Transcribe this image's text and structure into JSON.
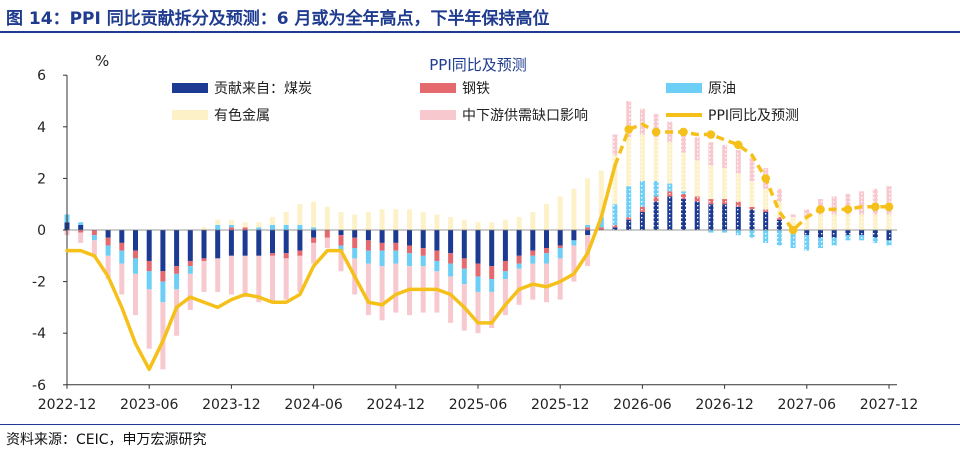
{
  "figure": {
    "title": "图 14：PPI 同比贡献拆分及预测：6 月或为全年高点，下半年保持高位",
    "source": "资料来源：CEIC，申万宏源研究"
  },
  "colors": {
    "coal": "#1c3a91",
    "steel": "#e46a70",
    "oil": "#6dcff6",
    "metal": "#fdf1c7",
    "shortage": "#f7c9ce",
    "ppi": "#f5c01a",
    "axis": "#333333",
    "title": "#1f3b8f"
  },
  "chart_data": {
    "type": "bar",
    "title": "PPI同比及预测",
    "ylabel": "%",
    "ylim": [
      -6,
      6
    ],
    "yticks": [
      6,
      4,
      2,
      0,
      -2,
      -4,
      -6
    ],
    "xtick_labels": [
      "2022-12",
      "2023-06",
      "2023-12",
      "2024-06",
      "2024-12",
      "2025-06",
      "2025-12",
      "2026-06",
      "2026-12",
      "2027-06",
      "2027-12"
    ],
    "xtick_index": [
      0,
      6,
      12,
      18,
      24,
      30,
      36,
      42,
      48,
      54,
      60
    ],
    "forecast_start_index": 40,
    "legend_position": "top",
    "series": [
      {
        "name": "贡献来自：煤炭",
        "key": "coal",
        "values": [
          0.3,
          0.2,
          0,
          -0.3,
          -0.5,
          -0.8,
          -1.2,
          -1.6,
          -1.4,
          -1.2,
          -1.1,
          -1.1,
          -1.0,
          -1.0,
          -1.0,
          -0.9,
          -0.9,
          -0.8,
          -0.3,
          0.0,
          -0.2,
          -0.3,
          -0.4,
          -0.5,
          -0.5,
          -0.6,
          -0.7,
          -0.8,
          -0.9,
          -1.1,
          -1.3,
          -1.4,
          -1.2,
          -1.0,
          -0.8,
          -0.7,
          -0.6,
          -0.4,
          -0.2,
          0.0,
          0.1,
          0.4,
          0.7,
          1.1,
          1.3,
          1.2,
          1.1,
          1.0,
          1.0,
          0.9,
          0.8,
          0.7,
          0.4,
          0.0,
          -0.2,
          -0.3,
          -0.3,
          -0.2,
          -0.2,
          -0.3,
          -0.4
        ]
      },
      {
        "name": "钢铁",
        "key": "steel",
        "values": [
          0.0,
          -0.1,
          -0.2,
          -0.3,
          -0.3,
          -0.3,
          -0.4,
          -0.4,
          -0.3,
          -0.2,
          -0.1,
          0.0,
          0.1,
          0.1,
          0.0,
          -0.1,
          -0.2,
          -0.2,
          -0.2,
          -0.3,
          -0.4,
          -0.4,
          -0.4,
          -0.3,
          -0.3,
          -0.3,
          -0.3,
          -0.4,
          -0.4,
          -0.4,
          -0.5,
          -0.5,
          -0.4,
          -0.3,
          -0.2,
          -0.2,
          -0.1,
          0.0,
          0.1,
          0.1,
          0.1,
          0.1,
          0.2,
          0.2,
          0.2,
          0.2,
          0.2,
          0.2,
          0.2,
          0.2,
          0.1,
          0.1,
          0.1,
          0.0,
          0.0,
          0.0,
          0.0,
          0.0,
          0.0,
          0.0,
          0.0
        ]
      },
      {
        "name": "原油",
        "key": "oil",
        "values": [
          0.3,
          0.1,
          -0.2,
          -0.4,
          -0.5,
          -0.6,
          -0.7,
          -0.8,
          -0.6,
          -0.3,
          0.0,
          0.2,
          0.1,
          0.0,
          0.1,
          0.2,
          0.2,
          0.2,
          0.1,
          0.0,
          -0.2,
          -0.4,
          -0.5,
          -0.6,
          -0.5,
          -0.5,
          -0.4,
          -0.4,
          -0.5,
          -0.6,
          -0.6,
          -0.5,
          -0.3,
          -0.2,
          -0.3,
          -0.4,
          -0.4,
          -0.2,
          0.1,
          0.4,
          0.8,
          1.2,
          1.0,
          0.6,
          0.3,
          0.1,
          0.0,
          -0.1,
          -0.1,
          -0.2,
          -0.3,
          -0.5,
          -0.6,
          -0.7,
          -0.6,
          -0.4,
          -0.3,
          -0.2,
          -0.2,
          -0.2,
          -0.2
        ]
      },
      {
        "name": "有色金属",
        "key": "metal",
        "values": [
          0.0,
          0.0,
          0.0,
          0.0,
          0.0,
          0.0,
          0.0,
          0.0,
          0.0,
          0.0,
          0.1,
          0.2,
          0.2,
          0.2,
          0.2,
          0.3,
          0.5,
          0.8,
          1.0,
          0.9,
          0.7,
          0.6,
          0.7,
          0.8,
          0.8,
          0.8,
          0.7,
          0.6,
          0.5,
          0.4,
          0.3,
          0.3,
          0.4,
          0.5,
          0.7,
          1.0,
          1.3,
          1.6,
          1.8,
          1.8,
          1.9,
          1.9,
          1.8,
          1.7,
          1.6,
          1.5,
          1.4,
          1.3,
          1.2,
          1.1,
          1.0,
          0.8,
          0.6,
          0.5,
          0.5,
          0.6,
          0.6,
          0.6,
          0.6,
          0.6,
          0.6
        ]
      },
      {
        "name": "中下游供需缺口影响",
        "key": "shortage",
        "values": [
          -0.2,
          -0.4,
          -0.6,
          -0.9,
          -1.2,
          -1.6,
          -2.3,
          -2.6,
          -1.8,
          -1.4,
          -1.2,
          -1.3,
          -1.5,
          -1.6,
          -1.8,
          -1.8,
          -1.6,
          -1.4,
          -0.8,
          -0.4,
          -0.8,
          -1.4,
          -2.0,
          -2.1,
          -1.9,
          -1.9,
          -1.8,
          -1.6,
          -1.8,
          -1.8,
          -1.6,
          -1.4,
          -1.4,
          -1.4,
          -1.4,
          -1.5,
          -1.6,
          -1.4,
          -1.2,
          0.0,
          0.8,
          1.4,
          1.0,
          0.9,
          0.8,
          0.8,
          0.9,
          0.9,
          0.9,
          0.9,
          0.9,
          0.8,
          0.5,
          0.1,
          0.3,
          0.6,
          0.7,
          0.8,
          0.9,
          1.0,
          1.1
        ]
      },
      {
        "name": "PPI同比及预测",
        "key": "ppi",
        "type": "line",
        "values": [
          -0.8,
          -0.8,
          -1.0,
          -1.8,
          -3.0,
          -4.4,
          -5.4,
          -4.3,
          -3.0,
          -2.6,
          -2.8,
          -3.0,
          -2.7,
          -2.5,
          -2.6,
          -2.8,
          -2.8,
          -2.5,
          -1.4,
          -0.8,
          -0.8,
          -1.8,
          -2.8,
          -2.9,
          -2.5,
          -2.3,
          -2.3,
          -2.3,
          -2.5,
          -3.0,
          -3.6,
          -3.6,
          -2.9,
          -2.3,
          -2.1,
          -2.2,
          -2.0,
          -1.7,
          -0.9,
          0.5,
          2.5,
          3.9,
          4.1,
          3.8,
          3.8,
          3.8,
          3.7,
          3.7,
          3.5,
          3.3,
          2.9,
          2.0,
          0.7,
          0.0,
          0.5,
          0.8,
          0.8,
          0.8,
          0.9,
          0.9,
          0.9
        ]
      }
    ]
  }
}
